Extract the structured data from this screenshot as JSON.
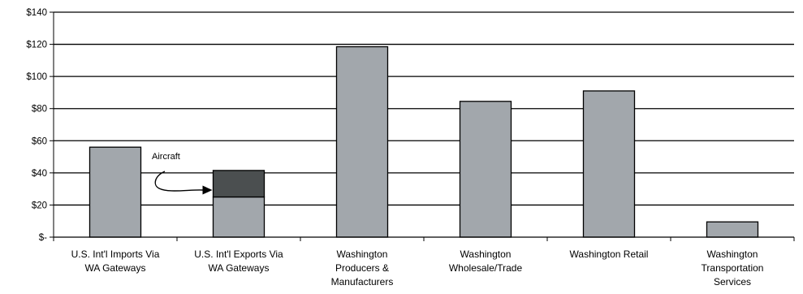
{
  "chart_data": {
    "type": "bar",
    "title": "",
    "xlabel": "",
    "ylabel": "",
    "ylim": [
      0,
      140
    ],
    "yticks": [
      0,
      20,
      40,
      60,
      80,
      100,
      120,
      140
    ],
    "ytick_labels": [
      "$-",
      "$20",
      "$40",
      "$60",
      "$80",
      "$100",
      "$120",
      "$140"
    ],
    "grid": true,
    "categories": [
      [
        "U.S. Int'l Imports Via",
        "WA Gateways"
      ],
      [
        "U.S. Int'l Exports Via",
        "WA Gateways"
      ],
      [
        "Washington",
        "Producers &",
        "Manufacturers"
      ],
      [
        "Washington",
        "Wholesale/Trade"
      ],
      [
        "Washington Retail"
      ],
      [
        "Washington",
        "Transportation",
        "Services"
      ]
    ],
    "series": [
      {
        "values": [
          56,
          25,
          118.5,
          84.5,
          91,
          9.5
        ],
        "color": "#a2a7ac"
      },
      {
        "values": [
          0,
          16.5,
          0,
          0,
          0,
          0
        ],
        "color": "#4b4f50"
      }
    ],
    "annotation": {
      "text": "Aircraft",
      "category_index": 1
    }
  }
}
